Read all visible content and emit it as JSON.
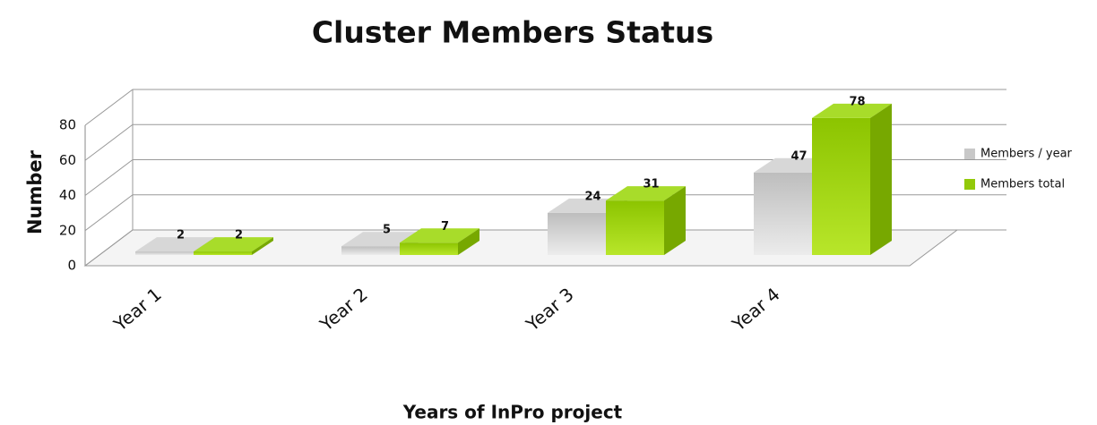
{
  "chart_data": {
    "type": "bar",
    "title": "Cluster Members Status",
    "y_label": "Number",
    "x_label": "Years of InPro project",
    "categories": [
      "Year 1",
      "Year 2",
      "Year 3",
      "Year 4"
    ],
    "series": [
      {
        "name": "Members / year",
        "color": "#c8c8c8",
        "values": [
          2,
          5,
          24,
          47
        ]
      },
      {
        "name": "Members total",
        "color": "#92c90a",
        "values": [
          2,
          7,
          31,
          78
        ]
      }
    ],
    "ylim": [
      0,
      80
    ],
    "yticks": [
      0,
      20,
      40,
      60,
      80
    ],
    "grid": true,
    "legend": "right"
  }
}
